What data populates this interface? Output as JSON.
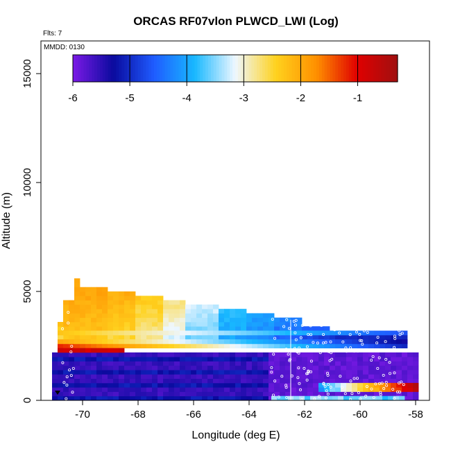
{
  "chart_data": {
    "type": "heatmap",
    "title": "ORCAS RF07vlon PLWCD_LWI (Log)",
    "flights_label": "Flts: 7",
    "date_label": "MMDD: 0130",
    "xlabel": "Longitude (deg E)",
    "ylabel": "Altitude (m)",
    "xlim": [
      -71.5,
      -57.5
    ],
    "ylim": [
      0,
      16500
    ],
    "x_ticks": [
      -70,
      -68,
      -66,
      -64,
      -62,
      -60,
      -58
    ],
    "y_ticks": [
      0,
      5000,
      10000,
      15000
    ],
    "x_tick_labels": [
      "-70",
      "-68",
      "-66",
      "-64",
      "-62",
      "-60",
      "-58"
    ],
    "y_tick_labels": [
      "0",
      "5000",
      "10000",
      "15000"
    ],
    "colorbar": {
      "range": [
        -6,
        -0.3
      ],
      "ticks": [
        -6,
        -5,
        -4,
        -3,
        -2,
        -1
      ],
      "tick_labels": [
        "-6",
        "-5",
        "-4",
        "-3",
        "-2",
        "-1"
      ],
      "stops": [
        "#7b1ae6",
        "#0a0a9e",
        "#1f5cff",
        "#18b8ff",
        "#eef7ff",
        "#ffd21e",
        "#ff9000",
        "#e00000",
        "#a01010"
      ]
    },
    "grid_bin_lon": 0.2,
    "grid_bin_alt": 200,
    "vertical_line_lon": -62.5,
    "cell_regions": [
      {
        "lon": [
          -70.3,
          -70.1
        ],
        "alt": [
          2800,
          5500
        ],
        "top_val": -1.9,
        "low_val": -2.2
      },
      {
        "lon": [
          -70.1,
          -69.1
        ],
        "alt": [
          2800,
          5200
        ],
        "top_val": -1.9,
        "low_val": -2.3
      },
      {
        "lon": [
          -69.1,
          -68.1
        ],
        "alt": [
          2800,
          5000
        ],
        "top_val": -2.0,
        "low_val": -2.5
      },
      {
        "lon": [
          -68.1,
          -67.1
        ],
        "alt": [
          2800,
          4800
        ],
        "top_val": -2.3,
        "low_val": -2.8
      },
      {
        "lon": [
          -67.1,
          -66.3
        ],
        "alt": [
          2800,
          4600
        ],
        "top_val": -2.7,
        "low_val": -3.2
      },
      {
        "lon": [
          -66.3,
          -65.1
        ],
        "alt": [
          2800,
          4400
        ],
        "top_val": -3.2,
        "low_val": -3.6
      },
      {
        "lon": [
          -65.1,
          -64.1
        ],
        "alt": [
          2800,
          4200
        ],
        "top_val": -3.8,
        "low_val": -4.0
      },
      {
        "lon": [
          -64.1,
          -63.1
        ],
        "alt": [
          2800,
          4000
        ],
        "top_val": -4.0,
        "low_val": -4.2
      },
      {
        "lon": [
          -63.1,
          -62.1
        ],
        "alt": [
          2800,
          3800
        ],
        "top_val": -4.2,
        "low_val": -4.5
      },
      {
        "lon": [
          -62.1,
          -61.1
        ],
        "alt": [
          2800,
          3400
        ],
        "top_val": -4.4,
        "low_val": -4.8
      },
      {
        "lon": [
          -61.1,
          -59.7
        ],
        "alt": [
          2800,
          3200
        ],
        "top_val": -4.6,
        "low_val": -5.0
      },
      {
        "lon": [
          -59.7,
          -58.3
        ],
        "alt": [
          2600,
          3000
        ],
        "top_val": -5.0,
        "low_val": -5.2
      },
      {
        "lon": [
          -70.7,
          -70.3
        ],
        "alt": [
          2600,
          4600
        ],
        "top_val": -2.0,
        "low_val": -2.3
      },
      {
        "lon": [
          -70.9,
          -70.7
        ],
        "alt": [
          2600,
          3600
        ],
        "top_val": -2.2,
        "low_val": -2.6
      }
    ],
    "low_layer": {
      "lon": [
        -71.1,
        -58.0
      ],
      "alt": [
        0,
        2200
      ],
      "value_range": [
        -6,
        -5.1
      ]
    },
    "red_band": {
      "lon": [
        -70.9,
        -68.5
      ],
      "alt": [
        2200,
        2600
      ],
      "value": -1.0
    },
    "surface_patch": {
      "lon": [
        -61.5,
        -58.0
      ],
      "alt": [
        200,
        1000
      ],
      "values": [
        -4.2,
        -3.0,
        -2.0,
        -1.0,
        -0.6
      ]
    },
    "bottom_patch": {
      "lon": [
        -63.2,
        -58.5
      ],
      "alt": [
        0,
        400
      ],
      "value": -3.9
    }
  }
}
